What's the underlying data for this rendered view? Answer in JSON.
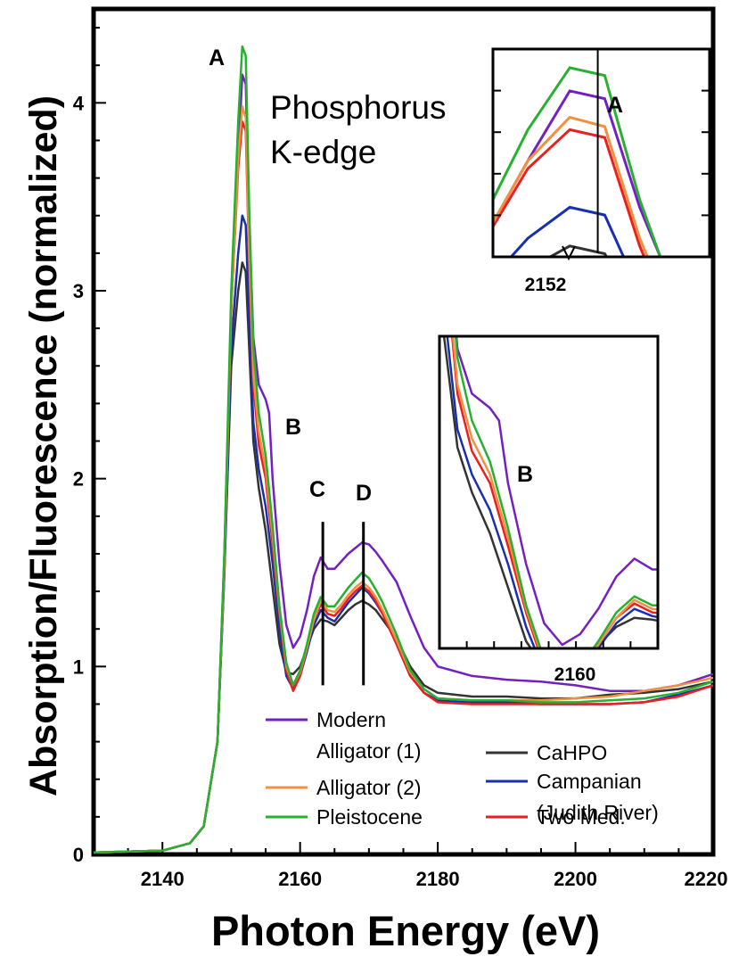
{
  "chart_data": [
    {
      "type": "line",
      "title": "",
      "xlabel": "Photon Energy (eV)",
      "ylabel": "Absorption/Fluorescence (normalized)",
      "xlim": [
        2130,
        2220
      ],
      "ylim": [
        0,
        4.5
      ],
      "x_ticks": [
        2140,
        2160,
        2180,
        2200,
        2220
      ],
      "y_ticks": [
        0,
        1,
        2,
        3,
        4
      ],
      "grid": false,
      "legend_position": "lower-center",
      "annotations": {
        "title_line1": "Phosphorus",
        "title_line2": "K-edge",
        "peak_A": "A",
        "peak_B": "B",
        "peak_C": "C",
        "peak_D": "D",
        "peak_C_energy": 2163.3,
        "peak_D_energy": 2169.2
      },
      "legend_entries": [
        {
          "key": "modern",
          "line1": "Modern",
          "line2": "Alligator (1)"
        },
        {
          "key": "alli2",
          "line1": "Alligator (2)",
          "line2": ""
        },
        {
          "key": "pleist",
          "line1": "Pleistocene",
          "line2": ""
        },
        {
          "key": "cahpo",
          "line1": "CaHPO",
          "line2": ""
        },
        {
          "key": "camp",
          "line1": "Campanian",
          "line2": "(Judith River)"
        },
        {
          "key": "twomed",
          "line1": "Two Med.",
          "line2": ""
        }
      ],
      "series": [
        {
          "key": "modern",
          "name": "Modern Alligator (1)",
          "color": "#7420c0",
          "x": [
            2130,
            2140,
            2144,
            2146,
            2148,
            2149,
            2150,
            2151,
            2151.6,
            2152.1,
            2152.6,
            2153.2,
            2154,
            2155,
            2155.5,
            2156,
            2157,
            2158,
            2159,
            2160,
            2161,
            2162,
            2163,
            2164,
            2165,
            2166,
            2167,
            2168,
            2169,
            2170,
            2171,
            2172,
            2174,
            2176,
            2178,
            2180,
            2185,
            2190,
            2195,
            2200,
            2205,
            2210,
            2215,
            2220
          ],
          "y": [
            0.01,
            0.02,
            0.06,
            0.15,
            0.6,
            1.6,
            2.9,
            3.7,
            4.15,
            4.1,
            3.4,
            2.75,
            2.5,
            2.42,
            2.35,
            2.0,
            1.55,
            1.22,
            1.1,
            1.16,
            1.3,
            1.48,
            1.58,
            1.52,
            1.52,
            1.56,
            1.6,
            1.63,
            1.66,
            1.65,
            1.61,
            1.56,
            1.45,
            1.27,
            1.1,
            1.0,
            0.95,
            0.93,
            0.92,
            0.9,
            0.87,
            0.87,
            0.9,
            0.96
          ]
        },
        {
          "key": "cahpo",
          "name": "CaHPO",
          "color": "#333333",
          "x": [
            2130,
            2140,
            2144,
            2146,
            2148,
            2149,
            2150,
            2151,
            2151.6,
            2152.1,
            2152.6,
            2153.2,
            2154,
            2155,
            2156,
            2157,
            2158,
            2159,
            2160,
            2161,
            2162,
            2163,
            2164,
            2165,
            2166,
            2167,
            2168,
            2169,
            2170,
            2171,
            2172,
            2174,
            2176,
            2178,
            2180,
            2185,
            2190,
            2195,
            2200,
            2205,
            2210,
            2215,
            2220
          ],
          "y": [
            0.01,
            0.02,
            0.06,
            0.15,
            0.6,
            1.5,
            2.6,
            3.0,
            3.15,
            3.1,
            2.7,
            2.2,
            1.95,
            1.72,
            1.42,
            1.12,
            0.97,
            0.96,
            1.0,
            1.1,
            1.2,
            1.25,
            1.24,
            1.22,
            1.26,
            1.3,
            1.33,
            1.35,
            1.33,
            1.3,
            1.25,
            1.15,
            1.0,
            0.9,
            0.86,
            0.84,
            0.84,
            0.83,
            0.83,
            0.85,
            0.86,
            0.88,
            0.92
          ]
        },
        {
          "key": "camp",
          "name": "Campanian (Judith River)",
          "color": "#1830b0",
          "x": [
            2130,
            2140,
            2144,
            2146,
            2148,
            2149,
            2150,
            2151,
            2151.6,
            2152.1,
            2152.6,
            2153.2,
            2154,
            2155,
            2156,
            2157,
            2158,
            2159,
            2160,
            2161,
            2162,
            2163,
            2164,
            2165,
            2166,
            2167,
            2168,
            2169,
            2170,
            2171,
            2172,
            2174,
            2176,
            2178,
            2180,
            2185,
            2190,
            2195,
            2200,
            2205,
            2210,
            2215,
            2220
          ],
          "y": [
            0.01,
            0.02,
            0.06,
            0.15,
            0.6,
            1.5,
            2.7,
            3.2,
            3.4,
            3.35,
            2.85,
            2.3,
            2.05,
            1.85,
            1.55,
            1.2,
            0.95,
            0.88,
            0.95,
            1.08,
            1.22,
            1.3,
            1.26,
            1.24,
            1.29,
            1.34,
            1.38,
            1.42,
            1.39,
            1.34,
            1.28,
            1.12,
            0.95,
            0.86,
            0.82,
            0.81,
            0.81,
            0.8,
            0.8,
            0.8,
            0.81,
            0.85,
            0.9
          ]
        },
        {
          "key": "twomed",
          "name": "Two Med.",
          "color": "#e82020",
          "x": [
            2130,
            2140,
            2144,
            2146,
            2148,
            2149,
            2150,
            2151,
            2151.6,
            2152.1,
            2152.6,
            2153.2,
            2154,
            2155,
            2156,
            2157,
            2158,
            2159,
            2160,
            2161,
            2162,
            2163,
            2164,
            2165,
            2166,
            2167,
            2168,
            2169,
            2170,
            2171,
            2172,
            2174,
            2176,
            2178,
            2180,
            2185,
            2190,
            2195,
            2200,
            2205,
            2210,
            2215,
            2220
          ],
          "y": [
            0.01,
            0.02,
            0.06,
            0.15,
            0.6,
            1.55,
            2.9,
            3.65,
            3.9,
            3.85,
            3.15,
            2.5,
            2.18,
            2.0,
            1.65,
            1.28,
            0.98,
            0.87,
            0.95,
            1.1,
            1.25,
            1.33,
            1.28,
            1.27,
            1.31,
            1.36,
            1.4,
            1.43,
            1.4,
            1.35,
            1.28,
            1.12,
            0.95,
            0.86,
            0.81,
            0.8,
            0.8,
            0.8,
            0.8,
            0.8,
            0.81,
            0.84,
            0.9
          ]
        },
        {
          "key": "alli2",
          "name": "Alligator (2)",
          "color": "#f09040",
          "x": [
            2130,
            2140,
            2144,
            2146,
            2148,
            2149,
            2150,
            2151,
            2151.6,
            2152.1,
            2152.6,
            2153.2,
            2154,
            2155,
            2156,
            2157,
            2158,
            2159,
            2160,
            2161,
            2162,
            2163,
            2164,
            2165,
            2166,
            2167,
            2168,
            2169,
            2170,
            2171,
            2172,
            2174,
            2176,
            2178,
            2180,
            2185,
            2190,
            2195,
            2200,
            2205,
            2210,
            2215,
            2220
          ],
          "y": [
            0.01,
            0.02,
            0.06,
            0.15,
            0.6,
            1.55,
            2.9,
            3.7,
            3.98,
            3.92,
            3.2,
            2.55,
            2.25,
            2.05,
            1.7,
            1.3,
            1.0,
            0.9,
            0.97,
            1.1,
            1.25,
            1.35,
            1.3,
            1.29,
            1.33,
            1.38,
            1.42,
            1.45,
            1.42,
            1.37,
            1.3,
            1.14,
            0.97,
            0.88,
            0.83,
            0.82,
            0.82,
            0.82,
            0.83,
            0.84,
            0.87,
            0.9,
            0.94
          ]
        },
        {
          "key": "pleist",
          "name": "Pleistocene",
          "color": "#28b030",
          "x": [
            2130,
            2140,
            2144,
            2146,
            2148,
            2149,
            2150,
            2151,
            2151.6,
            2152.1,
            2152.6,
            2153.2,
            2154,
            2155,
            2156,
            2157,
            2158,
            2159,
            2160,
            2161,
            2162,
            2163,
            2164,
            2165,
            2166,
            2167,
            2168,
            2169,
            2170,
            2171,
            2172,
            2174,
            2176,
            2178,
            2180,
            2185,
            2190,
            2195,
            2200,
            2205,
            2210,
            2215,
            2220
          ],
          "y": [
            0.01,
            0.02,
            0.06,
            0.15,
            0.6,
            1.6,
            3.0,
            3.9,
            4.3,
            4.25,
            3.45,
            2.7,
            2.35,
            2.12,
            1.75,
            1.32,
            1.02,
            0.9,
            0.98,
            1.12,
            1.28,
            1.37,
            1.32,
            1.32,
            1.37,
            1.42,
            1.46,
            1.5,
            1.47,
            1.41,
            1.34,
            1.17,
            0.98,
            0.88,
            0.83,
            0.82,
            0.82,
            0.81,
            0.81,
            0.82,
            0.83,
            0.86,
            0.92
          ]
        }
      ]
    },
    {
      "type": "line",
      "inset": "peak A zoom",
      "x_tick_label": "2152",
      "xlim": [
        2150.5,
        2153.6
      ],
      "ylim": [
        3.08,
        4.42
      ],
      "marker_x": 2152,
      "label": "A",
      "grid": false
    },
    {
      "type": "line",
      "inset": "region B zoom",
      "x_tick_label": "2160",
      "xlim": [
        2152.2,
        2164.3
      ],
      "ylim": [
        1.08,
        2.82
      ],
      "label": "B",
      "grid": false
    }
  ]
}
